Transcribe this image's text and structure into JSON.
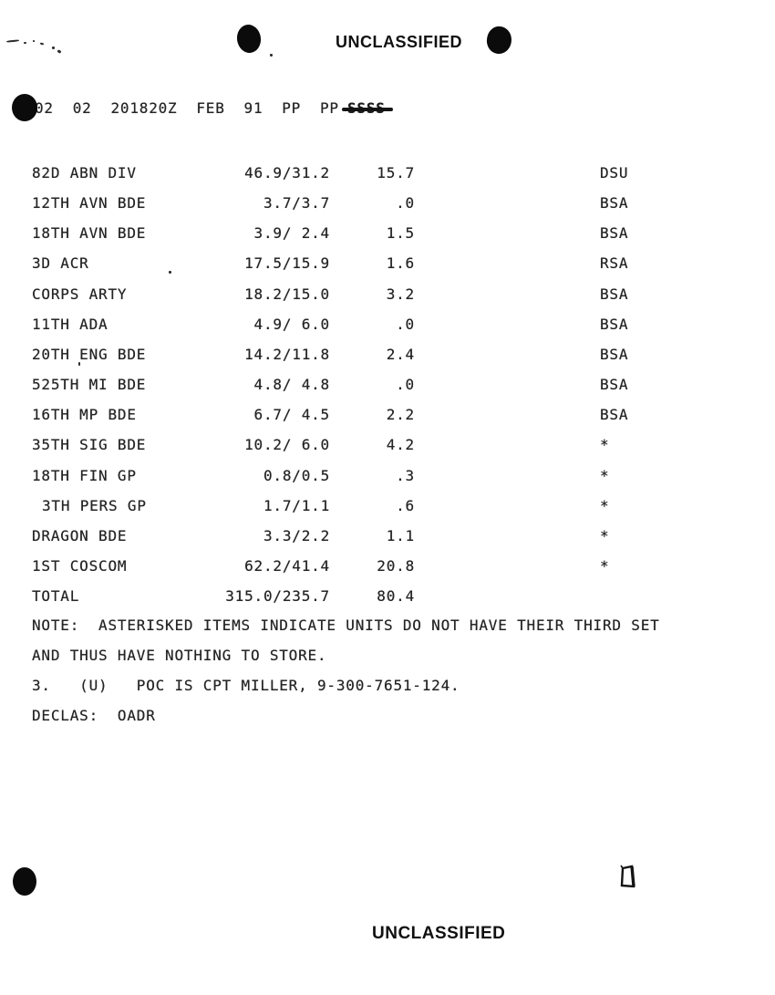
{
  "page": {
    "paper_color": "#ffffff",
    "ink_color": "#242424",
    "header_classification": "UNCLASSIFIED",
    "footer_classification": "UNCLASSIFIED"
  },
  "message_header": {
    "line": "02  02  201820Z  FEB  91  PP  PP",
    "struck_text": "SSSS"
  },
  "table": {
    "rows": [
      {
        "unit": "82D ABN DIV",
        "values": "46.9/31.2",
        "delta": "15.7",
        "flag": "DSU"
      },
      {
        "unit": "12TH AVN BDE",
        "values": "3.7/3.7",
        "delta": ".0",
        "flag": "BSA"
      },
      {
        "unit": "18TH AVN BDE",
        "values": "3.9/ 2.4",
        "delta": "1.5",
        "flag": "BSA"
      },
      {
        "unit": "3D ACR",
        "values": "17.5/15.9",
        "delta": "1.6",
        "flag": "RSA"
      },
      {
        "unit": "CORPS ARTY",
        "values": "18.2/15.0",
        "delta": "3.2",
        "flag": "BSA"
      },
      {
        "unit": "11TH ADA",
        "values": "4.9/ 6.0",
        "delta": ".0",
        "flag": "BSA"
      },
      {
        "unit": "20TH ENG BDE",
        "values": "14.2/11.8",
        "delta": "2.4",
        "flag": "BSA"
      },
      {
        "unit": "525TH MI BDE",
        "values": "4.8/ 4.8",
        "delta": ".0",
        "flag": "BSA"
      },
      {
        "unit": "16TH MP BDE",
        "values": "6.7/ 4.5",
        "delta": "2.2",
        "flag": "BSA"
      },
      {
        "unit": "35TH SIG BDE",
        "values": "10.2/ 6.0",
        "delta": "4.2",
        "flag": "*"
      },
      {
        "unit": "18TH FIN GP",
        "values": "0.8/0.5",
        "delta": ".3",
        "flag": "*"
      },
      {
        "unit": "3TH PERS GP",
        "values": "1.7/1.1",
        "delta": ".6",
        "flag": "*",
        "indent": true
      },
      {
        "unit": "DRAGON BDE",
        "values": "3.3/2.2",
        "delta": "1.1",
        "flag": "*"
      },
      {
        "unit": "1ST COSCOM",
        "values": "62.2/41.4",
        "delta": "20.8",
        "flag": "*"
      },
      {
        "unit": "TOTAL",
        "values": "315.0/235.7",
        "delta": "80.4",
        "flag": ""
      }
    ]
  },
  "notes": {
    "note_line_1": "NOTE:  ASTERISKED ITEMS INDICATE UNITS DO NOT HAVE THEIR THIRD SET",
    "note_line_2": "AND THUS HAVE NOTHING TO STORE.",
    "poc_line": "3.   (U)   POC IS CPT MILLER, 9-300-7651-124.",
    "declas_line": "DECLAS:  OADR"
  }
}
